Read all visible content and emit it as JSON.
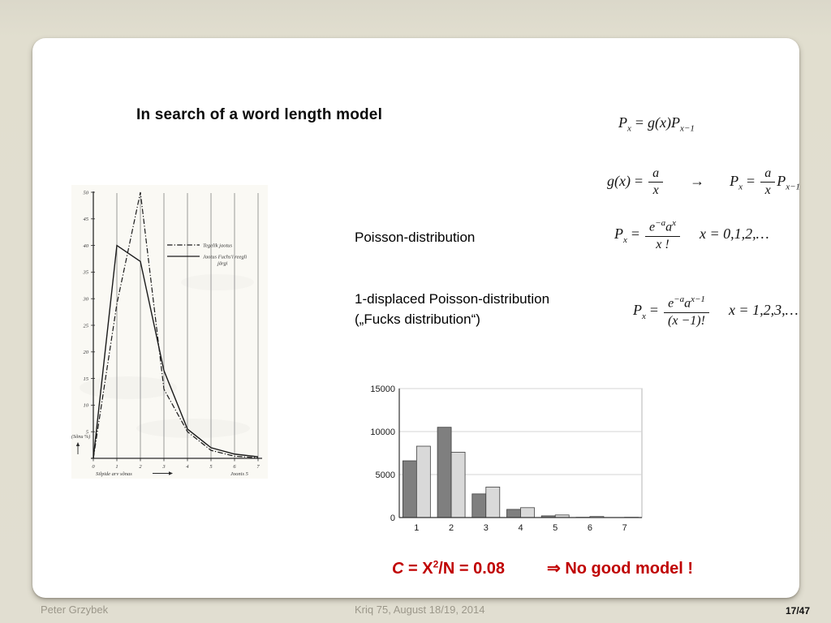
{
  "slide": {
    "title": "In search of a word length model",
    "label_poisson": "Poisson-distribution",
    "label_displaced_line1": "1-displaced Poisson-distribution",
    "label_displaced_line2": "(„Fucks distribution“)",
    "conclusion": {
      "lead_c": "C",
      "mid": " = X",
      "sup": "2",
      "tail": "/N = 0.08",
      "implies": "⇒",
      "verdict": " No good model !",
      "color": "#c00000"
    }
  },
  "formulas": {
    "recurrence": {
      "p1": "P",
      "p1sub": "x",
      "eq": "=",
      "fn": "g",
      "arg": "(x)",
      "p2": "P",
      "p2sub": "x−1"
    },
    "gdef": {
      "lhs": "g(x)",
      "eq": "=",
      "num": "a",
      "den": "x",
      "arrow": "→",
      "p": "P",
      "psub": "x",
      "eq2": "=",
      "num2": "a",
      "den2": "x",
      "p2": "P",
      "p2sub": "x−1"
    },
    "poisson": {
      "p": "P",
      "psub": "x",
      "eq": "=",
      "num_e": "e",
      "num_e_sup": "−a",
      "num_a": "a",
      "num_a_sup": "x",
      "den": "x !",
      "range": "x = 0,1,2,…"
    },
    "displaced": {
      "p": "P",
      "psub": "x",
      "eq": "=",
      "num_e": "e",
      "num_e_sup": "−a",
      "num_a": "a",
      "num_a_sup": "x−1",
      "den": "(x −1)!",
      "range": "x = 1,2,3,…"
    }
  },
  "chart_data": [
    {
      "type": "line",
      "title": "",
      "x": [
        0,
        1,
        2,
        3,
        4,
        5,
        6,
        7
      ],
      "series": [
        {
          "name": "Tegelik jaotus",
          "line_style": "dash-dot",
          "color": "#1a1a1a",
          "values": [
            0,
            29,
            50,
            13,
            5,
            1.5,
            0.4,
            0.1
          ]
        },
        {
          "name": "Jaotus Fuchs'i reegli järgi",
          "line_style": "solid",
          "color": "#1a1a1a",
          "values": [
            0,
            40,
            37,
            16.5,
            5.5,
            2,
            0.8,
            0.3
          ]
        }
      ],
      "xlabel": "Silpide arv sõnas",
      "ylabel": "(Sõnu %)",
      "caption": "Joonis 5",
      "xlim": [
        0,
        7
      ],
      "ylim": [
        0,
        50
      ],
      "yticks": [
        5,
        10,
        15,
        20,
        25,
        30,
        35,
        40,
        45,
        50
      ],
      "xticks": [
        0,
        1,
        2,
        3,
        4,
        5,
        6,
        7
      ],
      "grid": "vertical",
      "legend_position": "upper-right-inside"
    },
    {
      "type": "bar",
      "title": "",
      "categories": [
        "1",
        "2",
        "3",
        "4",
        "5",
        "6",
        "7"
      ],
      "series": [
        {
          "name": "series1-dark",
          "color": "#7f7f7f",
          "values": [
            6600,
            10500,
            2750,
            950,
            200,
            30,
            10
          ]
        },
        {
          "name": "series2-light",
          "color": "#d9d9d9",
          "values": [
            8300,
            7600,
            3550,
            1150,
            300,
            120,
            30
          ]
        }
      ],
      "xlabel": "",
      "ylabel": "",
      "ylim": [
        0,
        15000
      ],
      "yticks": [
        0,
        5000,
        10000,
        15000
      ],
      "grid": "horizontal",
      "legend_position": "none"
    }
  ],
  "footer": {
    "author": "Peter Grzybek",
    "event": "Kriq 75, August 18/19, 2014",
    "page": "17/47"
  },
  "colors": {
    "background": "#e1ded1",
    "card": "#ffffff",
    "accent_red": "#c00000",
    "bar_dark": "#7f7f7f",
    "bar_light": "#d9d9d9",
    "footer_text": "#9b978a"
  }
}
